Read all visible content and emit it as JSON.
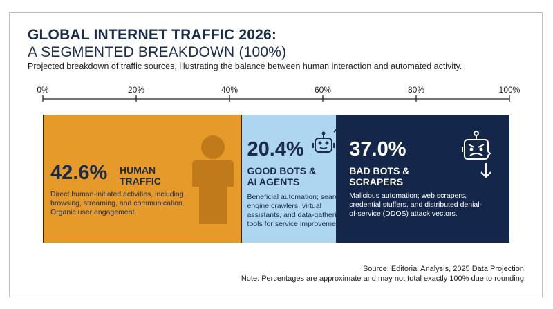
{
  "header": {
    "title_line1": "GLOBAL INTERNET TRAFFIC 2026:",
    "title_line2": "A SEGMENTED BREAKDOWN (100%)",
    "subtitle": "Projected breakdown of traffic sources, illustrating the balance between human interaction and automated activity."
  },
  "chart_data": {
    "type": "bar",
    "orientation": "horizontal-stacked",
    "title": "GLOBAL INTERNET TRAFFIC 2026: A SEGMENTED BREAKDOWN (100%)",
    "subtitle": "Projected breakdown of traffic sources, illustrating the balance between human interaction and automated activity.",
    "xlim": [
      0,
      100
    ],
    "ticks": [
      "0%",
      "20%",
      "40%",
      "60%",
      "80%",
      "100%"
    ],
    "tick_values": [
      0,
      20,
      40,
      60,
      80,
      100
    ],
    "grid": false,
    "series": [
      {
        "value": 42.6,
        "pct_label": "42.6%",
        "label": "HUMAN TRAFFIC",
        "description": "Direct human-initiated activities, including browsing, streaming, and communication. Organic user engagement.",
        "color": "#e59a2a",
        "icon": "person-icon"
      },
      {
        "value": 20.4,
        "pct_label": "20.4%",
        "label": "GOOD BOTS & AI AGENTS",
        "description": "Beneficial automation; search engine crawlers, virtual assistants, and data-gathering tools for service improvement.",
        "color": "#aed6f1",
        "icon": "friendly-robot-icon"
      },
      {
        "value": 37.0,
        "pct_label": "37.0%",
        "label": "BAD BOTS & SCRAPERS",
        "description": "Malicious automation; web scrapers, credential stuffers, and distributed denial-of-service (DDOS) attack vectors.",
        "color": "#14264a",
        "icon": "angry-robot-icon"
      }
    ]
  },
  "footer": {
    "source": "Source: Editorial Analysis, 2025 Data Projection.",
    "note": "Note: Percentages are approximate and may not total exactly 100% due to rounding."
  }
}
